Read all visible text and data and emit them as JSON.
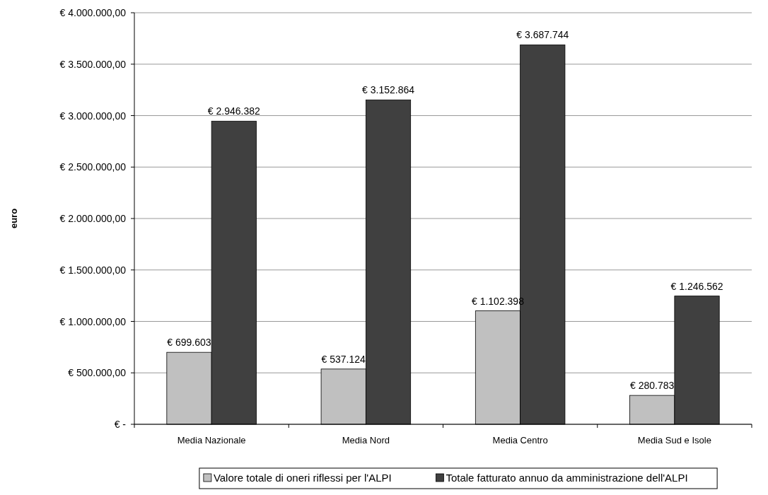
{
  "chart_data": {
    "type": "bar",
    "ylabel": "euro",
    "categories": [
      "Media Nazionale",
      "Media Nord",
      "Media Centro",
      "Media Sud e Isole"
    ],
    "series": [
      {
        "name": "Valore totale di oneri riflessi per l'ALPI",
        "color": "#c0c0c0",
        "values": [
          699603,
          537124,
          1102398,
          280783
        ],
        "value_labels": [
          "€ 699.603",
          "€ 537.124",
          "€ 1.102.398",
          "€ 280.783"
        ]
      },
      {
        "name": "Totale fatturato annuo da amministrazione dell'ALPI",
        "color": "#404040",
        "values": [
          2946382,
          3152864,
          3687744,
          1246562
        ],
        "value_labels": [
          "€ 2.946.382",
          "€ 3.152.864",
          "€ 3.687.744",
          "€ 1.246.562"
        ]
      }
    ],
    "ylim": [
      0,
      4000000
    ],
    "yticks": [
      {
        "value": 0,
        "label": "€ -"
      },
      {
        "value": 500000,
        "label": "€ 500.000,00"
      },
      {
        "value": 1000000,
        "label": "€ 1.000.000,00"
      },
      {
        "value": 1500000,
        "label": "€ 1.500.000,00"
      },
      {
        "value": 2000000,
        "label": "€ 2.000.000,00"
      },
      {
        "value": 2500000,
        "label": "€ 2.500.000,00"
      },
      {
        "value": 3000000,
        "label": "€ 3.000.000,00"
      },
      {
        "value": 3500000,
        "label": "€ 3.500.000,00"
      },
      {
        "value": 4000000,
        "label": "€ 4.000.000,00"
      }
    ],
    "grid": "y",
    "legend": "bottom"
  }
}
